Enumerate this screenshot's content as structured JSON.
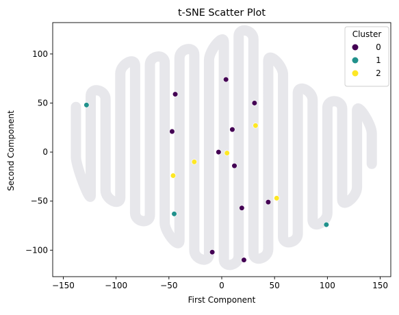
{
  "chart_data": {
    "type": "scatter",
    "title": "t-SNE Scatter Plot",
    "xlabel": "First Component",
    "ylabel": "Second Component",
    "xlim": [
      -160,
      160
    ],
    "ylim": [
      -127,
      132
    ],
    "xticks": [
      -150,
      -100,
      -50,
      0,
      50,
      100,
      150
    ],
    "yticks": [
      -100,
      -50,
      0,
      50,
      100
    ],
    "legend": {
      "title": "Cluster",
      "position": "top-right",
      "entries": [
        {
          "label": "0",
          "color": "#440154"
        },
        {
          "label": "1",
          "color": "#21918c"
        },
        {
          "label": "2",
          "color": "#fde725"
        }
      ]
    },
    "series": [
      {
        "name": "0",
        "color": "#440154",
        "points": [
          [
            4,
            74
          ],
          [
            -44,
            59
          ],
          [
            31,
            50
          ],
          [
            -47,
            21
          ],
          [
            10,
            23
          ],
          [
            -3,
            0
          ],
          [
            12,
            -14
          ],
          [
            19,
            -57
          ],
          [
            44,
            -51
          ],
          [
            -9,
            -102
          ],
          [
            21,
            -110
          ]
        ]
      },
      {
        "name": "1",
        "color": "#21918c",
        "points": [
          [
            -128,
            48
          ],
          [
            -45,
            -63
          ],
          [
            99,
            -74
          ]
        ]
      },
      {
        "name": "2",
        "color": "#fde725",
        "points": [
          [
            32,
            27
          ],
          [
            5,
            -1
          ],
          [
            -26,
            -10
          ],
          [
            -46,
            -24
          ],
          [
            52,
            -47
          ]
        ]
      }
    ],
    "background_shape": {
      "description_color": "#e3e3e8",
      "bands": [
        {
          "x": -138,
          "top": 46,
          "bottom": -5
        },
        {
          "x": -124,
          "top": 57,
          "bottom": -44
        },
        {
          "x": -110,
          "top": 54,
          "bottom": -39
        },
        {
          "x": -96,
          "top": 80,
          "bottom": -46
        },
        {
          "x": -82,
          "top": 88,
          "bottom": -62
        },
        {
          "x": -68,
          "top": 89,
          "bottom": -64
        },
        {
          "x": -54,
          "top": 91,
          "bottom": -72
        },
        {
          "x": -40,
          "top": 96,
          "bottom": -90
        },
        {
          "x": -26,
          "top": 99,
          "bottom": -100
        },
        {
          "x": -12,
          "top": 94,
          "bottom": -104
        },
        {
          "x": 2,
          "top": 112,
          "bottom": -109
        },
        {
          "x": 16,
          "top": 118,
          "bottom": -106
        },
        {
          "x": 30,
          "top": 115,
          "bottom": -103
        },
        {
          "x": 44,
          "top": 93,
          "bottom": -99
        },
        {
          "x": 58,
          "top": 79,
          "bottom": -86
        },
        {
          "x": 72,
          "top": 60,
          "bottom": -83
        },
        {
          "x": 86,
          "top": 53,
          "bottom": -69
        },
        {
          "x": 100,
          "top": 45,
          "bottom": -62
        },
        {
          "x": 114,
          "top": 44,
          "bottom": -48
        },
        {
          "x": 128,
          "top": 42,
          "bottom": -36
        },
        {
          "x": 142,
          "top": 19,
          "bottom": -12
        }
      ]
    }
  }
}
